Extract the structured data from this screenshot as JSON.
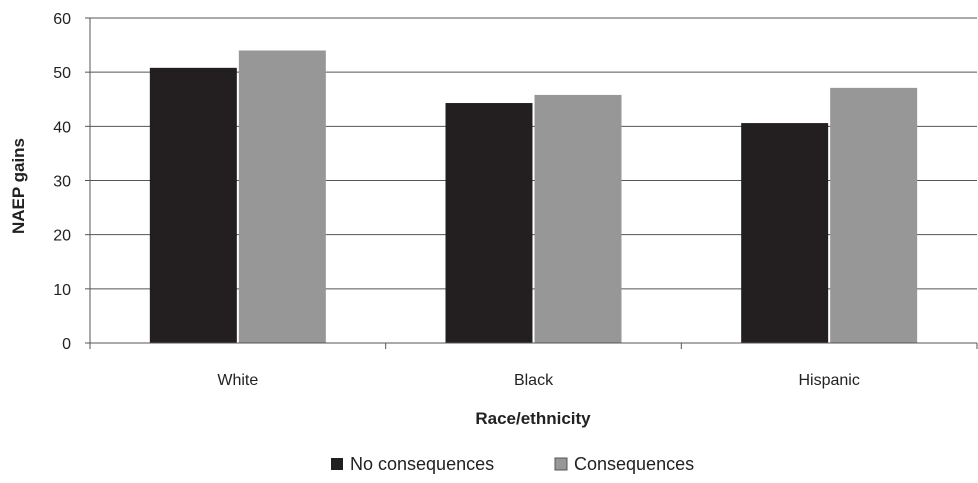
{
  "chart_data": {
    "type": "bar",
    "title": "",
    "xlabel": "Race/ethnicity",
    "ylabel": "NAEP gains",
    "categories": [
      "White",
      "Black",
      "Hispanic"
    ],
    "series": [
      {
        "name": "No consequences",
        "values": [
          50.8,
          44.3,
          40.6
        ],
        "color": "#231f20"
      },
      {
        "name": "Consequences",
        "values": [
          54.0,
          45.8,
          47.1
        ],
        "color": "#979797"
      }
    ],
    "ylim": [
      0,
      60
    ],
    "yticks": [
      0,
      10,
      20,
      30,
      40,
      50,
      60
    ],
    "grid": "horizontal",
    "legend_position": "bottom"
  }
}
